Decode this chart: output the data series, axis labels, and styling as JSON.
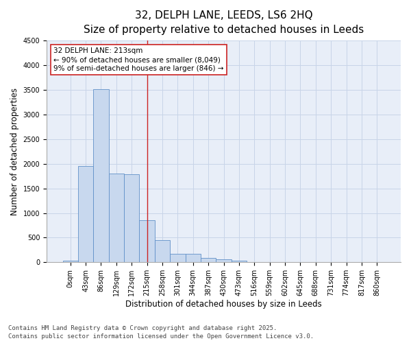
{
  "title_line1": "32, DELPH LANE, LEEDS, LS6 2HQ",
  "title_line2": "Size of property relative to detached houses in Leeds",
  "xlabel": "Distribution of detached houses by size in Leeds",
  "ylabel": "Number of detached properties",
  "categories": [
    "0sqm",
    "43sqm",
    "86sqm",
    "129sqm",
    "172sqm",
    "215sqm",
    "258sqm",
    "301sqm",
    "344sqm",
    "387sqm",
    "430sqm",
    "473sqm",
    "516sqm",
    "559sqm",
    "602sqm",
    "645sqm",
    "688sqm",
    "731sqm",
    "774sqm",
    "817sqm",
    "860sqm"
  ],
  "values": [
    30,
    1950,
    3520,
    1800,
    1790,
    860,
    455,
    165,
    165,
    90,
    60,
    30,
    0,
    0,
    0,
    0,
    0,
    0,
    0,
    0,
    0
  ],
  "bar_color": "#c8d8ee",
  "bar_edge_color": "#6090c8",
  "vline_color": "#cc2222",
  "annotation_text": "32 DELPH LANE: 213sqm\n← 90% of detached houses are smaller (8,049)\n9% of semi-detached houses are larger (846) →",
  "annotation_box_color": "#cc2222",
  "ylim": [
    0,
    4500
  ],
  "yticks": [
    0,
    500,
    1000,
    1500,
    2000,
    2500,
    3000,
    3500,
    4000,
    4500
  ],
  "grid_color": "#c8d4e8",
  "background_color": "#e8eef8",
  "footer_line1": "Contains HM Land Registry data © Crown copyright and database right 2025.",
  "footer_line2": "Contains public sector information licensed under the Open Government Licence v3.0.",
  "title_fontsize": 11,
  "subtitle_fontsize": 9,
  "axis_label_fontsize": 8.5,
  "tick_fontsize": 7,
  "footer_fontsize": 6.5
}
